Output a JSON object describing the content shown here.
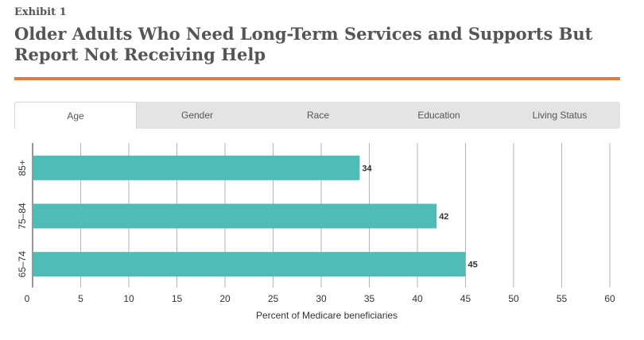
{
  "header": {
    "exhibit": "Exhibit 1",
    "title": "Older Adults Who Need Long-Term Services and Supports But Report Not Receiving Help"
  },
  "tabs": [
    {
      "label": "Age",
      "active": true
    },
    {
      "label": "Gender",
      "active": false
    },
    {
      "label": "Race",
      "active": false
    },
    {
      "label": "Education",
      "active": false
    },
    {
      "label": "Living Status",
      "active": false
    }
  ],
  "colors": {
    "bar": "#4fbdb7",
    "accent": "#e8793a"
  },
  "chart_data": {
    "type": "bar",
    "orientation": "horizontal",
    "categories": [
      "85+",
      "75–84",
      "65–74"
    ],
    "values": [
      34,
      42,
      45
    ],
    "value_labels": [
      "34",
      "42",
      "45"
    ],
    "xlabel": "Percent of Medicare beneficiaries",
    "ylabel": "",
    "xlim": [
      0,
      60
    ],
    "xticks": [
      0,
      5,
      10,
      15,
      20,
      25,
      30,
      35,
      40,
      45,
      50,
      55,
      60
    ],
    "grid": "vertical"
  }
}
